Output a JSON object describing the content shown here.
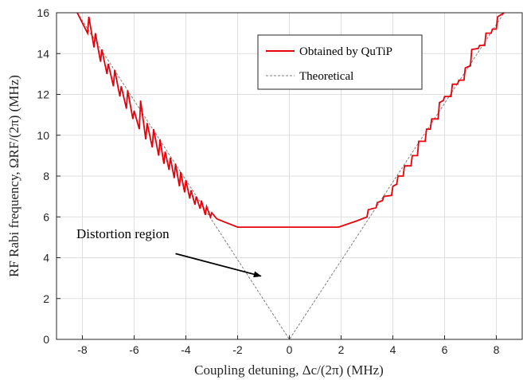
{
  "chart_data": {
    "type": "line",
    "xlabel": "Coupling detuning, Δc/(2π) (MHz)",
    "ylabel": "RF Rabi frequency, ΩRF/(2π) (MHz)",
    "xlim": [
      -9,
      9
    ],
    "ylim": [
      0,
      16
    ],
    "xticks": [
      "-8",
      "-6",
      "-4",
      "-2",
      "0",
      "2",
      "4",
      "6",
      "8"
    ],
    "yticks": [
      "0",
      "2",
      "4",
      "6",
      "8",
      "10",
      "12",
      "14",
      "16"
    ],
    "grid": true,
    "legend_position": "top-right",
    "series": [
      {
        "name": "Obtained by QuTiP",
        "color": "#e8000b",
        "style": "solid",
        "x": [
          -8.2,
          -7.8,
          -7.75,
          -7.55,
          -7.5,
          -7.3,
          -7.25,
          -7.05,
          -7.0,
          -6.8,
          -6.75,
          -6.55,
          -6.5,
          -6.3,
          -6.25,
          -6.05,
          -6.0,
          -5.8,
          -5.75,
          -5.55,
          -5.5,
          -5.3,
          -5.25,
          -5.05,
          -5.0,
          -4.85,
          -4.8,
          -4.65,
          -4.6,
          -4.45,
          -4.4,
          -4.25,
          -4.2,
          -4.05,
          -4.0,
          -3.85,
          -3.8,
          -3.65,
          -3.6,
          -3.45,
          -3.4,
          -3.25,
          -3.2,
          -3.05,
          -3.0,
          -2.8,
          -2.6,
          -2.0,
          0.0,
          1.9,
          2.6,
          3.0,
          3.05,
          3.35,
          3.4,
          3.6,
          3.65,
          3.95,
          4.0,
          4.15,
          4.2,
          4.4,
          4.45,
          4.7,
          4.75,
          4.95,
          5.0,
          5.25,
          5.3,
          5.45,
          5.5,
          5.75,
          5.8,
          5.95,
          6.0,
          6.25,
          6.3,
          6.5,
          6.55,
          6.75,
          6.8,
          7.0,
          7.05,
          7.3,
          7.35,
          7.55,
          7.6,
          7.8,
          7.85,
          8.0,
          8.05,
          8.3
        ],
        "y": [
          16.0,
          15.0,
          15.8,
          14.3,
          15.0,
          13.6,
          14.2,
          13.0,
          13.5,
          12.4,
          13.2,
          11.9,
          12.4,
          11.3,
          12.2,
          10.8,
          11.2,
          10.3,
          11.7,
          9.8,
          10.6,
          9.4,
          10.3,
          9.0,
          9.8,
          8.6,
          9.2,
          8.3,
          8.9,
          7.9,
          8.6,
          7.5,
          8.2,
          7.2,
          7.8,
          6.9,
          7.3,
          6.6,
          7.0,
          6.4,
          6.8,
          6.1,
          6.5,
          6.0,
          6.2,
          5.9,
          5.8,
          5.5,
          5.5,
          5.5,
          5.8,
          6.0,
          6.35,
          6.45,
          6.7,
          6.8,
          7.0,
          7.05,
          7.5,
          7.6,
          8.0,
          8.0,
          8.5,
          8.5,
          9.0,
          9.0,
          9.7,
          9.7,
          10.3,
          10.3,
          10.8,
          10.8,
          11.6,
          11.7,
          11.9,
          11.9,
          12.5,
          12.5,
          12.7,
          12.7,
          13.3,
          13.4,
          14.2,
          14.25,
          14.4,
          14.4,
          15.0,
          15.0,
          15.2,
          15.2,
          15.8,
          16.0
        ]
      },
      {
        "name": "Theoretical",
        "color": "#7f7f7f",
        "style": "dashed",
        "x": [
          -8.2,
          0.0,
          8.3
        ],
        "y": [
          16.0,
          0.0,
          16.0
        ]
      }
    ],
    "annotation": {
      "text": "Distortion region",
      "arrow_from": [
        -4.4,
        4.2
      ],
      "arrow_to": [
        -1.1,
        3.1
      ]
    }
  }
}
